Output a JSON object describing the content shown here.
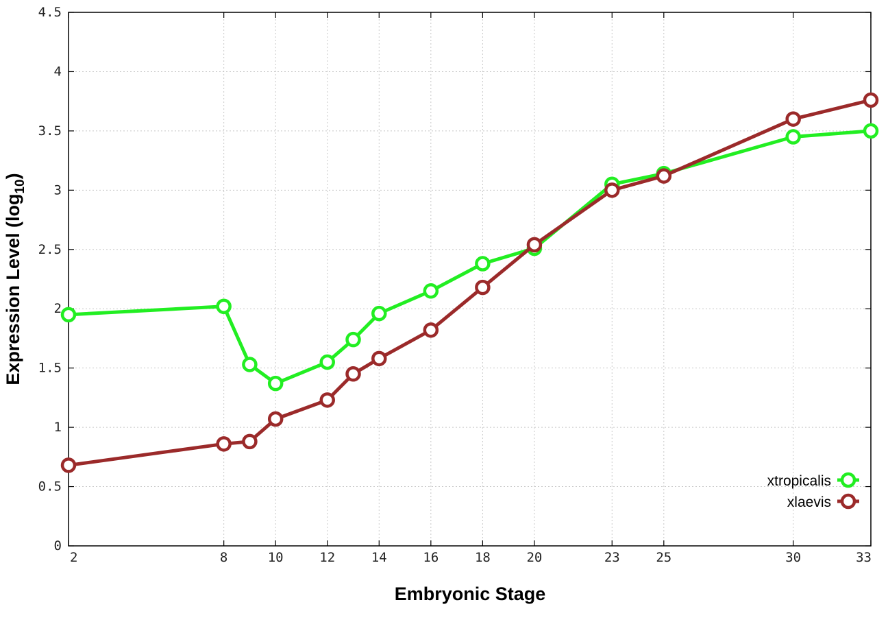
{
  "chart_data": {
    "type": "line",
    "title": "",
    "xlabel": "Embryonic Stage",
    "ylabel_main": "Expression Level (log",
    "ylabel_sub": "10",
    "ylabel_close": ")",
    "xlim": [
      2,
      33
    ],
    "ylim": [
      0,
      4.5
    ],
    "x_ticks": [
      2,
      8,
      10,
      12,
      14,
      16,
      18,
      20,
      23,
      25,
      30,
      33
    ],
    "y_ticks": [
      0,
      0.5,
      1,
      1.5,
      2,
      2.5,
      3,
      3.5,
      4,
      4.5
    ],
    "y_tick_labels": [
      "0",
      "0.5",
      "1",
      "1.5",
      "2",
      "2.5",
      "3",
      "3.5",
      "4",
      "4.5"
    ],
    "grid": true,
    "legend_position": "bottom-right",
    "series": [
      {
        "name": "xtropicalis",
        "color": "#22ee22",
        "x": [
          2,
          8,
          9,
          10,
          12,
          13,
          14,
          16,
          18,
          20,
          23,
          25,
          30,
          33
        ],
        "y": [
          1.95,
          2.02,
          1.53,
          1.37,
          1.55,
          1.74,
          1.96,
          2.15,
          2.38,
          2.51,
          3.05,
          3.14,
          3.45,
          3.5
        ]
      },
      {
        "name": "xlaevis",
        "color": "#9b2a2a",
        "x": [
          2,
          8,
          9,
          10,
          12,
          13,
          14,
          16,
          18,
          20,
          23,
          25,
          30,
          33
        ],
        "y": [
          0.68,
          0.86,
          0.88,
          1.07,
          1.23,
          1.45,
          1.58,
          1.82,
          2.18,
          2.54,
          3.0,
          3.12,
          3.6,
          3.76
        ]
      }
    ]
  }
}
